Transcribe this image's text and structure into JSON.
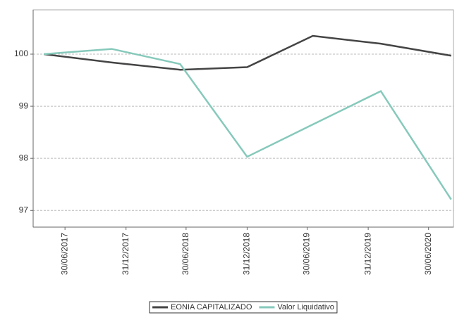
{
  "chart_data": {
    "type": "line",
    "x": [
      "2017-04-27",
      "2017-11-18",
      "2018-06-12",
      "2018-12-31",
      "2019-07-17",
      "2020-02-07",
      "2020-09-06"
    ],
    "series": [
      {
        "name": "EONIA CAPITALIZADO",
        "color": "#444444",
        "values": [
          100,
          99.84,
          99.7,
          99.75,
          100.35,
          100.2,
          99.97
        ]
      },
      {
        "name": "Valor Liquidativo",
        "color": "#86c9bb",
        "values": [
          100,
          100.1,
          99.81,
          98.03,
          98.65,
          99.29,
          97.21
        ]
      }
    ],
    "xlim": [
      "2017-03-26",
      "2020-09-13"
    ],
    "xticks": [
      {
        "value": "2017-06-30",
        "label": "30/06/2017"
      },
      {
        "value": "2017-12-31",
        "label": "31/12/2017"
      },
      {
        "value": "2018-06-30",
        "label": "30/06/2018"
      },
      {
        "value": "2018-12-31",
        "label": "31/12/2018"
      },
      {
        "value": "2019-06-30",
        "label": "30/06/2019"
      },
      {
        "value": "2019-12-31",
        "label": "31/12/2019"
      },
      {
        "value": "2020-06-30",
        "label": "30/06/2020"
      }
    ],
    "ylim": [
      96.68,
      100.85
    ],
    "yticks": [
      97,
      98,
      99,
      100
    ],
    "grid": true,
    "legend": "bottom"
  }
}
